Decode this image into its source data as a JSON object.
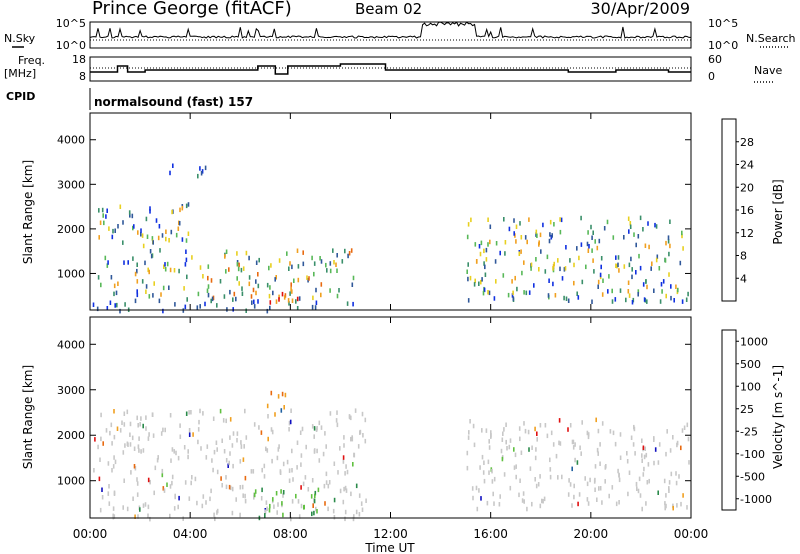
{
  "header": {
    "station": "Prince George (fitACF)",
    "beam": "Beam 02",
    "date": "30/Apr/2009"
  },
  "noise_panel": {
    "left_label": "N.Sky",
    "right_label": "N.Search",
    "left_ticks": [
      "10^5",
      "10^0"
    ],
    "right_ticks": [
      "10^5",
      "10^0"
    ]
  },
  "freq_panel": {
    "left_label_1": "Freq.",
    "left_label_2": "[MHz]",
    "right_label": "Nave",
    "left_ticks": [
      "18",
      "8"
    ],
    "right_ticks": [
      "60",
      "0"
    ]
  },
  "cpid_panel": {
    "label": "CPID",
    "text": "normalsound (fast) 157"
  },
  "colors": {
    "power_scale": [
      "#1030e0",
      "#30589a",
      "#3a8f6a",
      "#58b858",
      "#e8d020",
      "#f0a020",
      "#e86a10",
      "#e01010"
    ],
    "velocity_scale": [
      "#1010c0",
      "#2060a0",
      "#2a8a4a",
      "#60c040",
      "#c8c8c8",
      "#f0a020",
      "#e86a10",
      "#e01010"
    ]
  },
  "chart_data": [
    {
      "type": "heatmap",
      "title": "",
      "quantity": "Power",
      "ylabel": "Slant Range [km]",
      "xlabel": "",
      "ylim": [
        180,
        4600
      ],
      "y_ticks": [
        1000,
        2000,
        3000,
        4000
      ],
      "x_ticks": [
        "00:00",
        "04:00",
        "08:00",
        "12:00",
        "16:00",
        "20:00",
        "00:00"
      ],
      "colorbar": {
        "label": "Power [dB]",
        "ticks": [
          4,
          8,
          12,
          16,
          20,
          24,
          28
        ],
        "range": [
          0,
          30
        ]
      },
      "echo_regions": [
        {
          "t_start": 0.1,
          "t_end": 3.9,
          "r_min": 200,
          "r_max": 2600,
          "level": "medium"
        },
        {
          "t_start": 3.0,
          "t_end": 4.6,
          "r_min": 3100,
          "r_max": 3500,
          "level": "low"
        },
        {
          "t_start": 4.0,
          "t_end": 10.5,
          "r_min": 200,
          "r_max": 1600,
          "level": "high"
        },
        {
          "t_start": 6.2,
          "t_end": 8.5,
          "r_min": 350,
          "r_max": 700,
          "level": "peak"
        },
        {
          "t_start": 15.0,
          "t_end": 24.0,
          "r_min": 400,
          "r_max": 2300,
          "level": "medium"
        }
      ]
    },
    {
      "type": "heatmap",
      "title": "",
      "quantity": "Velocity",
      "ylabel": "Slant Range [km]",
      "xlabel": "Time UT",
      "ylim": [
        180,
        4600
      ],
      "y_ticks": [
        1000,
        2000,
        3000,
        4000
      ],
      "x_ticks": [
        "00:00",
        "04:00",
        "08:00",
        "12:00",
        "16:00",
        "20:00",
        "00:00"
      ],
      "colorbar": {
        "label": "Velocity [m s^-1]",
        "ticks": [
          1000,
          500,
          100,
          25,
          -25,
          -100,
          -500,
          -1000
        ]
      },
      "echo_regions": [
        {
          "t_start": 0.1,
          "t_end": 11.0,
          "r_min": 200,
          "r_max": 2600,
          "velocity": "near zero (grey)"
        },
        {
          "t_start": 5.8,
          "t_end": 6.3,
          "r_min": 1100,
          "r_max": 1600,
          "velocity": "-500"
        },
        {
          "t_start": 6.8,
          "t_end": 7.8,
          "r_min": 2600,
          "r_max": 3000,
          "velocity": "-100"
        },
        {
          "t_start": 6.5,
          "t_end": 9.2,
          "r_min": 200,
          "r_max": 900,
          "velocity": "100"
        },
        {
          "t_start": 15.0,
          "t_end": 24.0,
          "r_min": 400,
          "r_max": 2400,
          "velocity": "near zero (grey)"
        }
      ]
    }
  ]
}
